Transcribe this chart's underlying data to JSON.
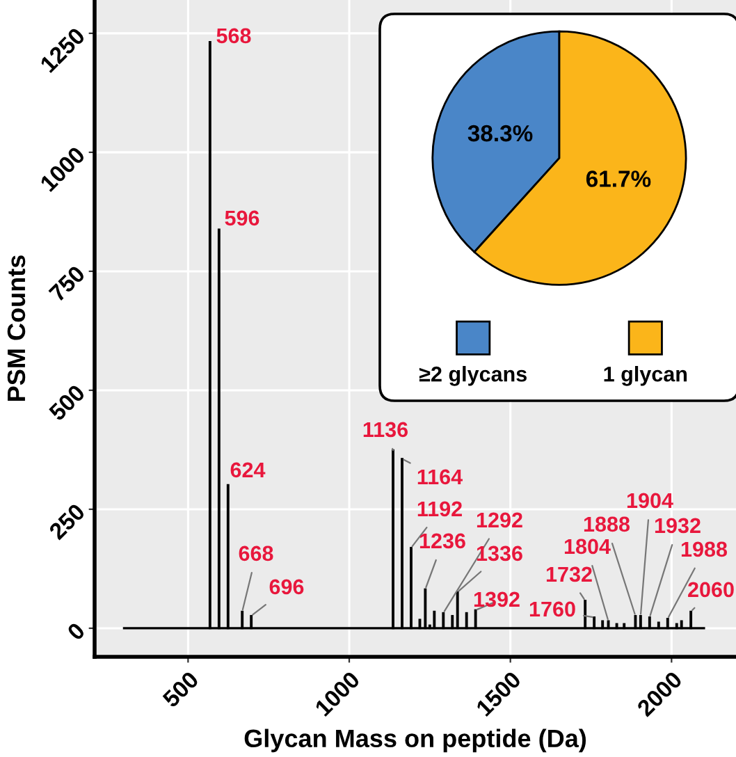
{
  "chart_data": [
    {
      "type": "bar",
      "xlabel": "Glycan Mass on peptide (Da)",
      "ylabel": "PSM Counts",
      "x": [
        568,
        596,
        624,
        668,
        696,
        1136,
        1164,
        1192,
        1219,
        1236,
        1250,
        1264,
        1292,
        1320,
        1336,
        1364,
        1392,
        1732,
        1760,
        1786,
        1804,
        1830,
        1853,
        1888,
        1904,
        1932,
        1960,
        1988,
        2016,
        2031,
        2060
      ],
      "values": [
        1232,
        838,
        301,
        35,
        26,
        374,
        356,
        169,
        18,
        82,
        6,
        35,
        32,
        26,
        76,
        32,
        38,
        58,
        23,
        15,
        15,
        9,
        9,
        26,
        26,
        23,
        12,
        20,
        9,
        15,
        35
      ],
      "color": "#000000",
      "xlim": [
        210,
        2200
      ],
      "ylim": [
        -60,
        1320
      ],
      "xticks": [
        500,
        1000,
        1500,
        2000
      ],
      "yticks": [
        0,
        250,
        500,
        750,
        1000,
        1250
      ],
      "grid": true,
      "ref_lines": [
        {
          "axis": "y",
          "value": 0,
          "label": null,
          "color": "#000000"
        }
      ],
      "annotations": [
        {
          "text": "568",
          "x": 568,
          "y": 1232
        },
        {
          "text": "596",
          "x": 596,
          "y": 838
        },
        {
          "text": "624",
          "x": 624,
          "y": 301
        },
        {
          "text": "668",
          "x": 668,
          "y": 35
        },
        {
          "text": "696",
          "x": 696,
          "y": 26
        },
        {
          "text": "1136",
          "x": 1136,
          "y": 374
        },
        {
          "text": "1164",
          "x": 1164,
          "y": 356
        },
        {
          "text": "1192",
          "x": 1192,
          "y": 169
        },
        {
          "text": "1236",
          "x": 1236,
          "y": 82
        },
        {
          "text": "1292",
          "x": 1292,
          "y": 32
        },
        {
          "text": "1336",
          "x": 1336,
          "y": 76
        },
        {
          "text": "1392",
          "x": 1392,
          "y": 38
        },
        {
          "text": "1732",
          "x": 1732,
          "y": 58
        },
        {
          "text": "1760",
          "x": 1760,
          "y": 23
        },
        {
          "text": "1804",
          "x": 1804,
          "y": 15
        },
        {
          "text": "1888",
          "x": 1888,
          "y": 26
        },
        {
          "text": "1904",
          "x": 1904,
          "y": 26
        },
        {
          "text": "1932",
          "x": 1932,
          "y": 23
        },
        {
          "text": "1988",
          "x": 1988,
          "y": 20
        },
        {
          "text": "2060",
          "x": 2060,
          "y": 35
        }
      ]
    },
    {
      "type": "pie",
      "categories": [
        "≥2 glycans",
        "1 glycan"
      ],
      "values": [
        38.3,
        61.7
      ],
      "colors": [
        "#4a86c8",
        "#fbb51a"
      ],
      "value_labels": [
        "38.3%",
        "61.7%"
      ],
      "legend": "bottom"
    }
  ]
}
